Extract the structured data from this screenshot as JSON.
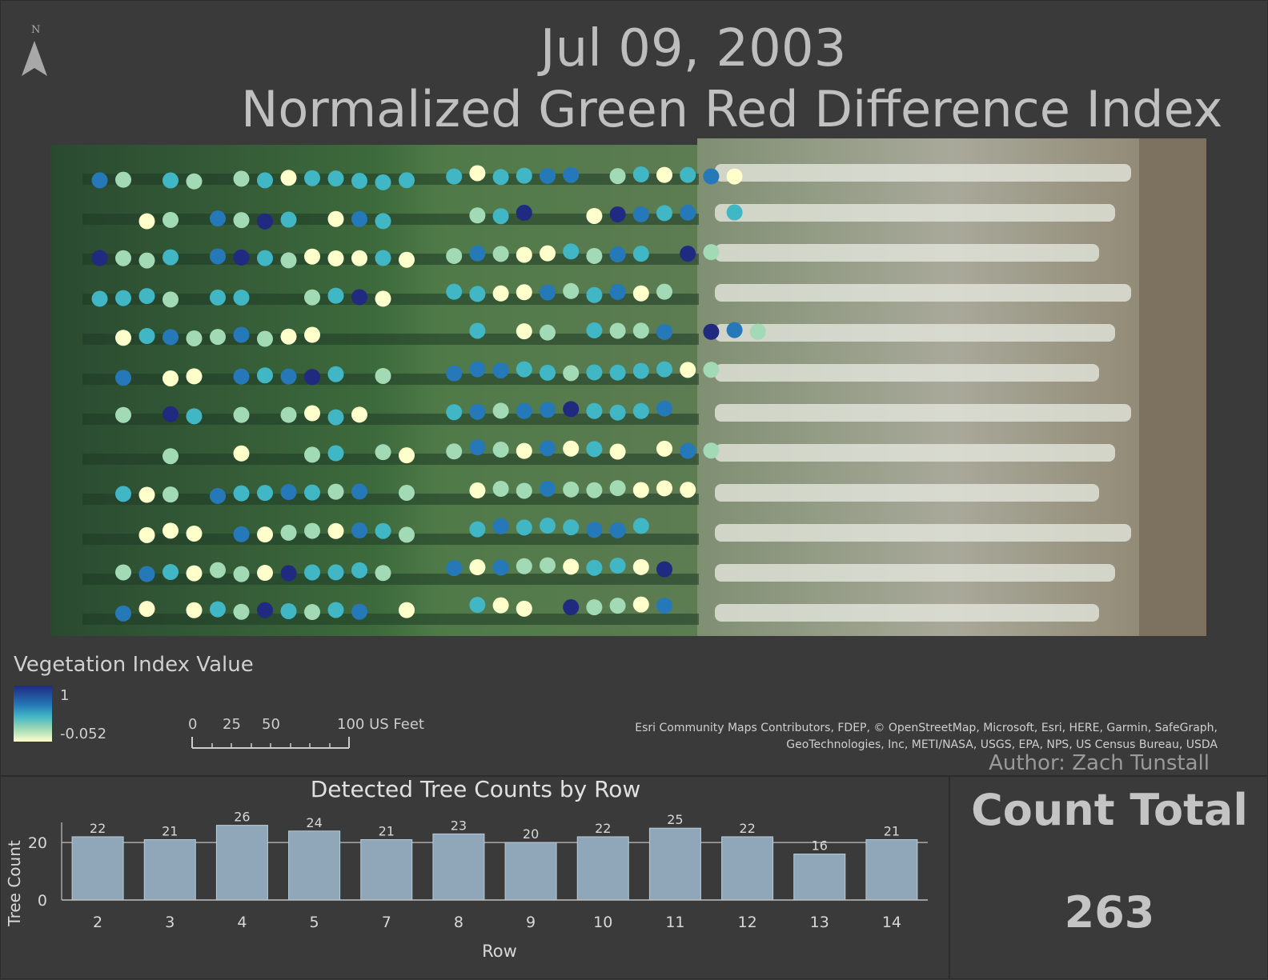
{
  "map": {
    "date": "Jul 09, 2003",
    "index_name": "Normalized Green Red Difference Index",
    "north_label": "N",
    "legend": {
      "title": "Vegetation Index Value",
      "max_label": "1",
      "min_label": "-0.052",
      "ramp_colors": [
        "#1f2a80",
        "#2679b8",
        "#41b6c4",
        "#a1dab4",
        "#ffffcc"
      ]
    },
    "scale_bar": {
      "ticks": [
        "0",
        "25",
        "50",
        "100 US Feet"
      ]
    },
    "credits": "Esri Community Maps Contributors, FDEP, © OpenStreetMap, Microsoft, Esri, HERE, Garmin, SafeGraph, GeoTechnologies, Inc, METI/NASA, USGS, EPA, NPS, US Census Bureau, USDA",
    "author": "Author: Zach Tunstall"
  },
  "chart_data": {
    "type": "bar",
    "title": "Detected Tree Counts by Row",
    "xlabel": "Row",
    "ylabel": "Tree Count",
    "categories": [
      "2",
      "3",
      "4",
      "5",
      "7",
      "8",
      "9",
      "10",
      "11",
      "12",
      "13",
      "14"
    ],
    "values": [
      22,
      21,
      26,
      24,
      21,
      23,
      20,
      22,
      25,
      22,
      16,
      21
    ],
    "yticks": [
      0,
      20
    ],
    "ylim": [
      0,
      27
    ],
    "bar_color": "#8fa7b8",
    "grid": "reference line at 20"
  },
  "count": {
    "title": "Count Total",
    "value": "263"
  }
}
